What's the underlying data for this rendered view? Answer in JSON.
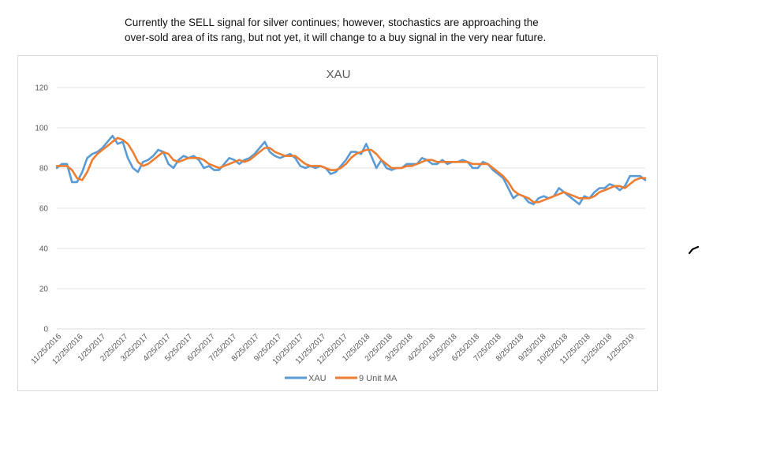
{
  "caption": {
    "line1": "Currently the SELL signal for silver continues; however, stochastics are approaching the",
    "line2": "over-sold area of its rang, but not yet, it will change to a buy signal in the very near future."
  },
  "chart_data": {
    "type": "line",
    "title": "XAU",
    "xlabel": "",
    "ylabel": "",
    "ylim": [
      0,
      120
    ],
    "yticks": [
      0,
      20,
      40,
      60,
      80,
      100,
      120
    ],
    "grid": true,
    "legend_position": "bottom",
    "xtick_labels": [
      "11/25/2016",
      "12/25/2016",
      "1/25/2017",
      "2/25/2017",
      "3/25/2017",
      "4/25/2017",
      "5/25/2017",
      "6/25/2017",
      "7/25/2017",
      "8/25/2017",
      "9/25/2017",
      "10/25/2017",
      "11/25/2017",
      "12/25/2017",
      "1/25/2018",
      "2/25/2018",
      "3/25/2018",
      "4/25/2018",
      "5/25/2018",
      "6/25/2018",
      "7/25/2018",
      "8/25/2018",
      "9/25/2018",
      "10/25/2018",
      "11/25/2018",
      "12/25/2018",
      "1/25/2019"
    ],
    "series": [
      {
        "name": "XAU",
        "color": "#5b9bd5",
        "points": [
          [
            "11/25/2016",
            80
          ],
          [
            "12/2/2016",
            82
          ],
          [
            "12/9/2016",
            82
          ],
          [
            "12/16/2016",
            73
          ],
          [
            "12/23/2016",
            73
          ],
          [
            "12/30/2016",
            78
          ],
          [
            "1/6/2017",
            85
          ],
          [
            "1/13/2017",
            87
          ],
          [
            "1/20/2017",
            88
          ],
          [
            "1/27/2017",
            90
          ],
          [
            "2/3/2017",
            93
          ],
          [
            "2/10/2017",
            96
          ],
          [
            "2/17/2017",
            92
          ],
          [
            "2/24/2017",
            93
          ],
          [
            "3/3/2017",
            85
          ],
          [
            "3/10/2017",
            80
          ],
          [
            "3/17/2017",
            78
          ],
          [
            "3/24/2017",
            83
          ],
          [
            "3/31/2017",
            84
          ],
          [
            "4/7/2017",
            86
          ],
          [
            "4/14/2017",
            89
          ],
          [
            "4/21/2017",
            88
          ],
          [
            "4/28/2017",
            82
          ],
          [
            "5/5/2017",
            80
          ],
          [
            "5/12/2017",
            84
          ],
          [
            "5/19/2017",
            86
          ],
          [
            "5/26/2017",
            85
          ],
          [
            "6/2/2017",
            86
          ],
          [
            "6/9/2017",
            84
          ],
          [
            "6/16/2017",
            80
          ],
          [
            "6/23/2017",
            81
          ],
          [
            "6/30/2017",
            79
          ],
          [
            "7/7/2017",
            79
          ],
          [
            "7/14/2017",
            82
          ],
          [
            "7/21/2017",
            85
          ],
          [
            "7/28/2017",
            84
          ],
          [
            "8/4/2017",
            82
          ],
          [
            "8/11/2017",
            84
          ],
          [
            "8/18/2017",
            85
          ],
          [
            "8/25/2017",
            87
          ],
          [
            "9/1/2017",
            90
          ],
          [
            "9/8/2017",
            93
          ],
          [
            "9/15/2017",
            88
          ],
          [
            "9/22/2017",
            86
          ],
          [
            "9/29/2017",
            85
          ],
          [
            "10/6/2017",
            86
          ],
          [
            "10/13/2017",
            87
          ],
          [
            "10/20/2017",
            85
          ],
          [
            "10/27/2017",
            81
          ],
          [
            "11/3/2017",
            80
          ],
          [
            "11/10/2017",
            81
          ],
          [
            "11/17/2017",
            80
          ],
          [
            "11/24/2017",
            81
          ],
          [
            "12/1/2017",
            80
          ],
          [
            "12/8/2017",
            77
          ],
          [
            "12/15/2017",
            78
          ],
          [
            "12/22/2017",
            81
          ],
          [
            "12/29/2017",
            84
          ],
          [
            "1/5/2018",
            88
          ],
          [
            "1/12/2018",
            88
          ],
          [
            "1/19/2018",
            87
          ],
          [
            "1/26/2018",
            92
          ],
          [
            "2/2/2018",
            86
          ],
          [
            "2/9/2018",
            80
          ],
          [
            "2/16/2018",
            84
          ],
          [
            "2/23/2018",
            80
          ],
          [
            "3/2/2018",
            79
          ],
          [
            "3/9/2018",
            80
          ],
          [
            "3/16/2018",
            80
          ],
          [
            "3/23/2018",
            82
          ],
          [
            "3/30/2018",
            82
          ],
          [
            "4/6/2018",
            82
          ],
          [
            "4/13/2018",
            85
          ],
          [
            "4/20/2018",
            84
          ],
          [
            "4/27/2018",
            82
          ],
          [
            "5/4/2018",
            82
          ],
          [
            "5/11/2018",
            84
          ],
          [
            "5/18/2018",
            82
          ],
          [
            "5/25/2018",
            83
          ],
          [
            "6/1/2018",
            83
          ],
          [
            "6/8/2018",
            84
          ],
          [
            "6/15/2018",
            83
          ],
          [
            "6/22/2018",
            80
          ],
          [
            "6/29/2018",
            80
          ],
          [
            "7/6/2018",
            83
          ],
          [
            "7/13/2018",
            82
          ],
          [
            "7/20/2018",
            79
          ],
          [
            "7/27/2018",
            77
          ],
          [
            "8/3/2018",
            75
          ],
          [
            "8/10/2018",
            70
          ],
          [
            "8/17/2018",
            65
          ],
          [
            "8/24/2018",
            67
          ],
          [
            "8/31/2018",
            66
          ],
          [
            "9/7/2018",
            63
          ],
          [
            "9/14/2018",
            62
          ],
          [
            "9/21/2018",
            65
          ],
          [
            "9/28/2018",
            66
          ],
          [
            "10/5/2018",
            65
          ],
          [
            "10/12/2018",
            66
          ],
          [
            "10/19/2018",
            70
          ],
          [
            "10/26/2018",
            68
          ],
          [
            "11/2/2018",
            66
          ],
          [
            "11/9/2018",
            64
          ],
          [
            "11/16/2018",
            62
          ],
          [
            "11/23/2018",
            66
          ],
          [
            "11/30/2018",
            65
          ],
          [
            "12/7/2018",
            68
          ],
          [
            "12/14/2018",
            70
          ],
          [
            "12/21/2018",
            70
          ],
          [
            "12/28/2018",
            72
          ],
          [
            "1/4/2019",
            71
          ],
          [
            "1/11/2019",
            69
          ],
          [
            "1/18/2019",
            71
          ],
          [
            "1/25/2019",
            76
          ],
          [
            "2/1/2019",
            76
          ],
          [
            "2/8/2019",
            76
          ],
          [
            "2/15/2019",
            74
          ]
        ]
      },
      {
        "name": "9 Unit MA",
        "color": "#ed7d31",
        "points": [
          [
            "11/25/2016",
            81
          ],
          [
            "12/2/2016",
            81
          ],
          [
            "12/9/2016",
            81
          ],
          [
            "12/16/2016",
            79
          ],
          [
            "12/23/2016",
            75
          ],
          [
            "12/30/2016",
            74
          ],
          [
            "1/6/2017",
            78
          ],
          [
            "1/13/2017",
            84
          ],
          [
            "1/20/2017",
            87
          ],
          [
            "1/27/2017",
            89
          ],
          [
            "2/3/2017",
            91
          ],
          [
            "2/10/2017",
            93
          ],
          [
            "2/17/2017",
            95
          ],
          [
            "2/24/2017",
            94
          ],
          [
            "3/3/2017",
            92
          ],
          [
            "3/10/2017",
            88
          ],
          [
            "3/17/2017",
            83
          ],
          [
            "3/24/2017",
            81
          ],
          [
            "3/31/2017",
            82
          ],
          [
            "4/7/2017",
            84
          ],
          [
            "4/14/2017",
            86
          ],
          [
            "4/21/2017",
            88
          ],
          [
            "4/28/2017",
            87
          ],
          [
            "5/5/2017",
            84
          ],
          [
            "5/12/2017",
            83
          ],
          [
            "5/19/2017",
            84
          ],
          [
            "5/26/2017",
            85
          ],
          [
            "6/2/2017",
            85
          ],
          [
            "6/9/2017",
            85
          ],
          [
            "6/16/2017",
            84
          ],
          [
            "6/23/2017",
            82
          ],
          [
            "6/30/2017",
            81
          ],
          [
            "7/7/2017",
            80
          ],
          [
            "7/14/2017",
            81
          ],
          [
            "7/21/2017",
            82
          ],
          [
            "7/28/2017",
            83
          ],
          [
            "8/4/2017",
            84
          ],
          [
            "8/11/2017",
            83
          ],
          [
            "8/18/2017",
            84
          ],
          [
            "8/25/2017",
            86
          ],
          [
            "9/1/2017",
            88
          ],
          [
            "9/8/2017",
            90
          ],
          [
            "9/15/2017",
            90
          ],
          [
            "9/22/2017",
            88
          ],
          [
            "9/29/2017",
            87
          ],
          [
            "10/6/2017",
            86
          ],
          [
            "10/13/2017",
            86
          ],
          [
            "10/20/2017",
            86
          ],
          [
            "10/27/2017",
            84
          ],
          [
            "11/3/2017",
            82
          ],
          [
            "11/10/2017",
            81
          ],
          [
            "11/17/2017",
            81
          ],
          [
            "11/24/2017",
            81
          ],
          [
            "12/1/2017",
            80
          ],
          [
            "12/8/2017",
            79
          ],
          [
            "12/15/2017",
            79
          ],
          [
            "12/22/2017",
            80
          ],
          [
            "12/29/2017",
            82
          ],
          [
            "1/5/2018",
            85
          ],
          [
            "1/12/2018",
            87
          ],
          [
            "1/19/2018",
            88
          ],
          [
            "1/26/2018",
            89
          ],
          [
            "2/2/2018",
            89
          ],
          [
            "2/9/2018",
            87
          ],
          [
            "2/16/2018",
            84
          ],
          [
            "2/23/2018",
            82
          ],
          [
            "3/2/2018",
            80
          ],
          [
            "3/9/2018",
            80
          ],
          [
            "3/16/2018",
            80
          ],
          [
            "3/23/2018",
            81
          ],
          [
            "3/30/2018",
            81
          ],
          [
            "4/6/2018",
            82
          ],
          [
            "4/13/2018",
            83
          ],
          [
            "4/20/2018",
            84
          ],
          [
            "4/27/2018",
            84
          ],
          [
            "5/4/2018",
            83
          ],
          [
            "5/11/2018",
            83
          ],
          [
            "5/18/2018",
            83
          ],
          [
            "5/25/2018",
            83
          ],
          [
            "6/1/2018",
            83
          ],
          [
            "6/8/2018",
            83
          ],
          [
            "6/15/2018",
            83
          ],
          [
            "6/22/2018",
            82
          ],
          [
            "6/29/2018",
            82
          ],
          [
            "7/6/2018",
            82
          ],
          [
            "7/13/2018",
            82
          ],
          [
            "7/20/2018",
            80
          ],
          [
            "7/27/2018",
            78
          ],
          [
            "8/3/2018",
            76
          ],
          [
            "8/10/2018",
            73
          ],
          [
            "8/17/2018",
            69
          ],
          [
            "8/24/2018",
            67
          ],
          [
            "8/31/2018",
            66
          ],
          [
            "9/7/2018",
            65
          ],
          [
            "9/14/2018",
            63
          ],
          [
            "9/21/2018",
            63
          ],
          [
            "9/28/2018",
            64
          ],
          [
            "10/5/2018",
            65
          ],
          [
            "10/12/2018",
            66
          ],
          [
            "10/19/2018",
            67
          ],
          [
            "10/26/2018",
            68
          ],
          [
            "11/2/2018",
            67
          ],
          [
            "11/9/2018",
            66
          ],
          [
            "11/16/2018",
            65
          ],
          [
            "11/23/2018",
            65
          ],
          [
            "11/30/2018",
            65
          ],
          [
            "12/7/2018",
            66
          ],
          [
            "12/14/2018",
            68
          ],
          [
            "12/21/2018",
            69
          ],
          [
            "12/28/2018",
            70
          ],
          [
            "1/4/2019",
            71
          ],
          [
            "1/11/2019",
            71
          ],
          [
            "1/18/2019",
            70
          ],
          [
            "1/25/2019",
            72
          ],
          [
            "2/1/2019",
            74
          ],
          [
            "2/8/2019",
            75
          ],
          [
            "2/15/2019",
            75
          ]
        ]
      }
    ]
  }
}
